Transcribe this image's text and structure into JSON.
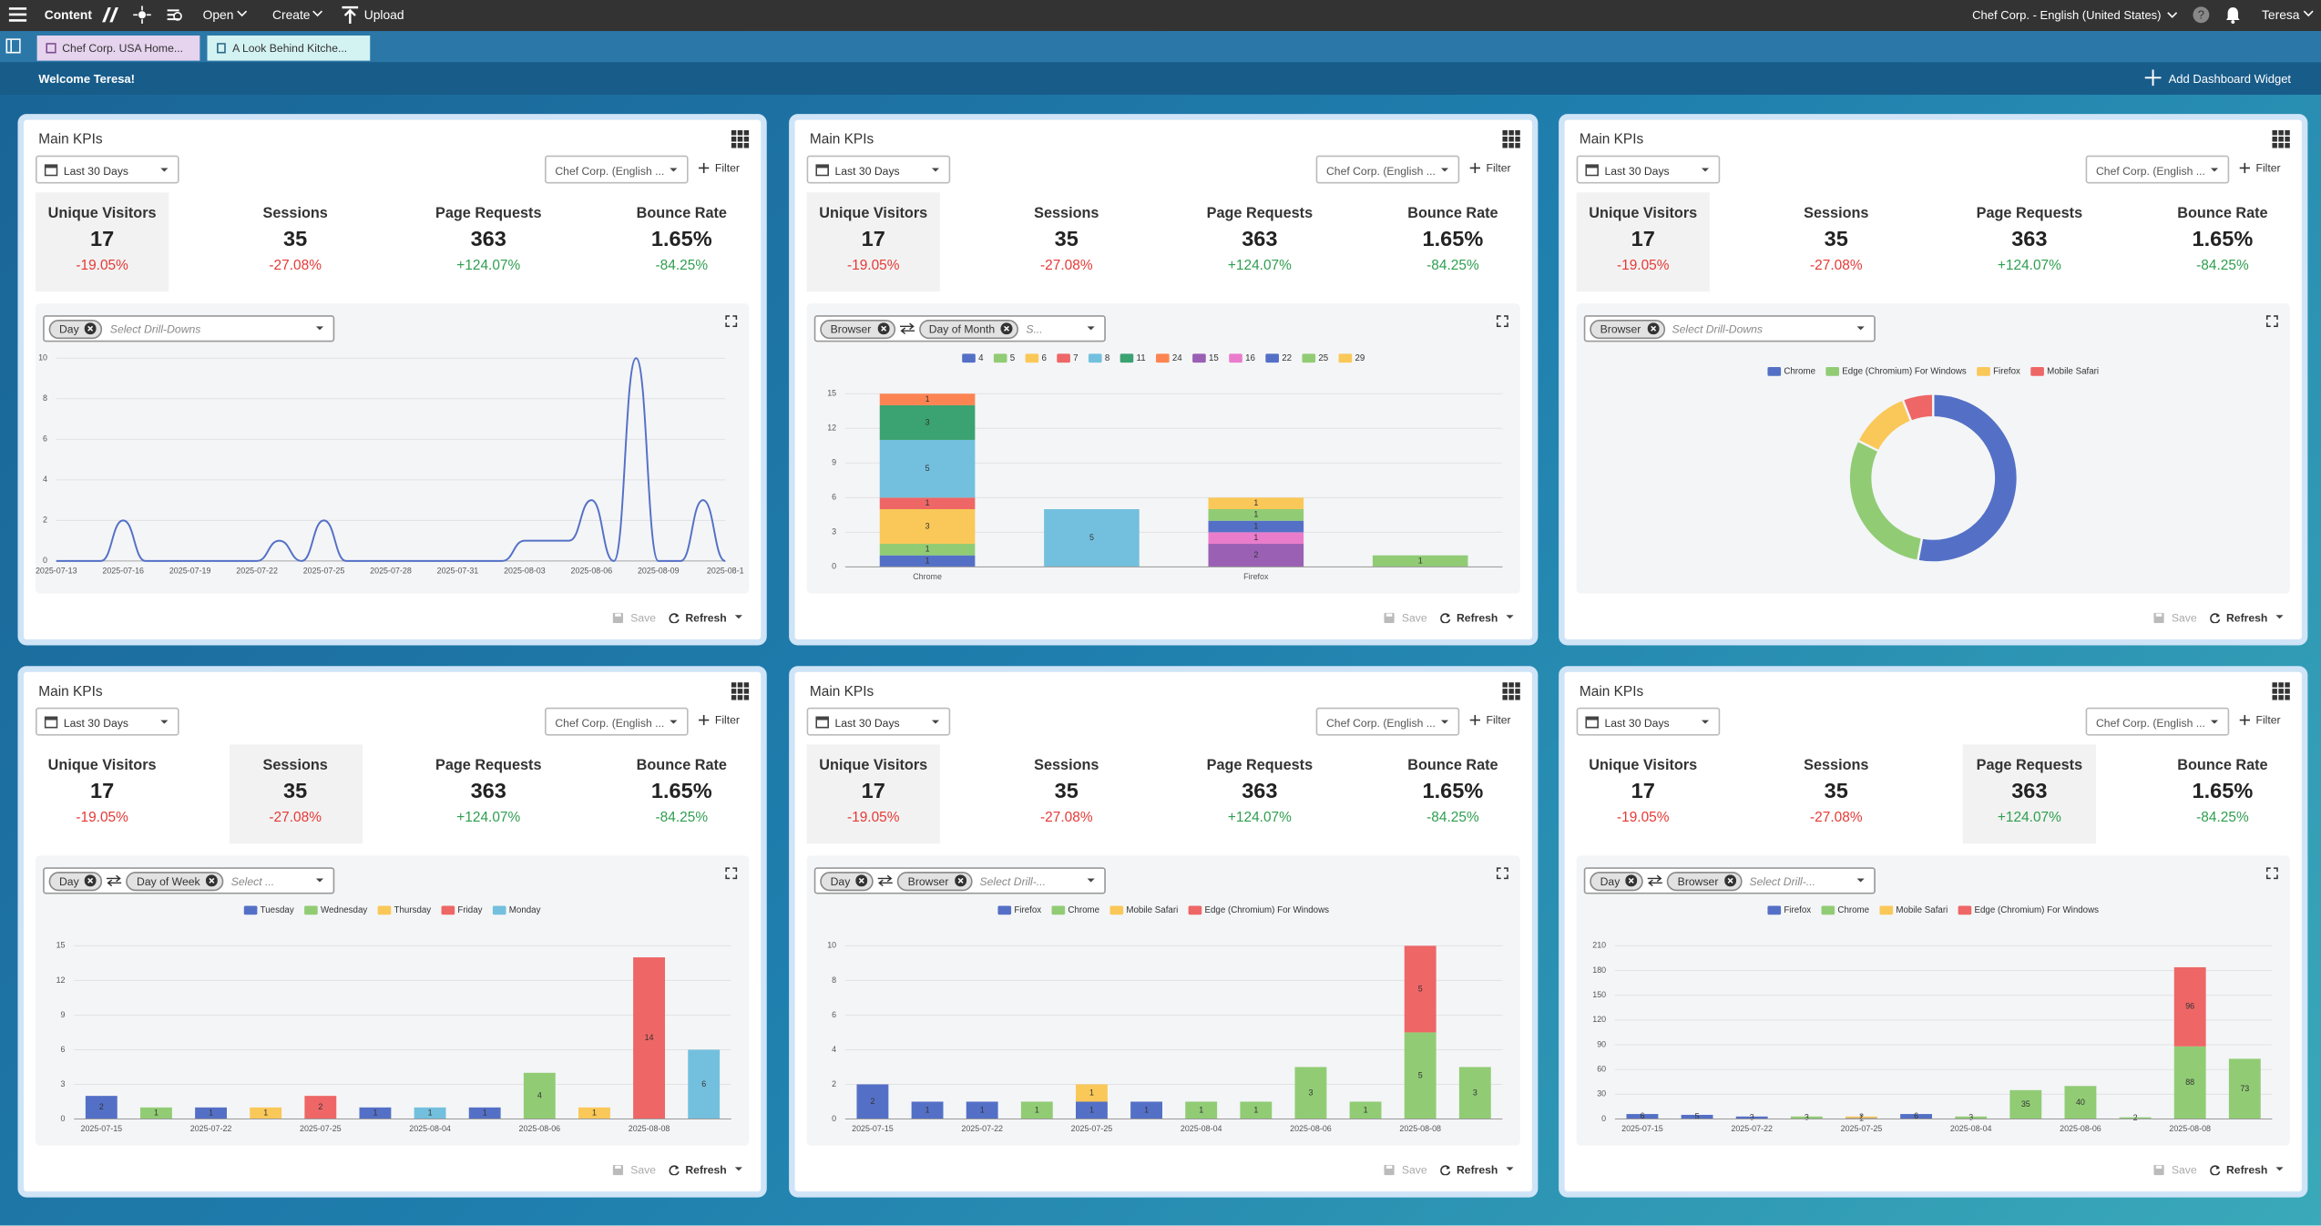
{
  "top_bar": {
    "app": "Content",
    "menus": [
      "Open",
      "Create"
    ],
    "upload": "Upload",
    "site": "Chef Corp. - English (United States)",
    "user": "Teresa"
  },
  "tabs": [
    "Chef Corp. USA Home...",
    "A Look Behind Kitche..."
  ],
  "welcome": "Welcome Teresa!",
  "add_widget": "Add Dashboard Widget",
  "widgets": [
    {
      "title": "Main KPIs",
      "date_range": "Last 30 Days",
      "site": "Chef Corp. (English ...",
      "filter": "Filter",
      "kpis": [
        {
          "label": "Unique Visitors",
          "value": "17",
          "change": "-19.05%",
          "change_color": "#e53935"
        },
        {
          "label": "Sessions",
          "value": "35",
          "change": "-27.08%",
          "change_color": "#e53935"
        },
        {
          "label": "Page Requests",
          "value": "363",
          "change": "+124.07%",
          "change_color": "#2e9e4f"
        },
        {
          "label": "Bounce Rate",
          "value": "1.65%",
          "change": "-84.25%",
          "change_color": "#2e9e4f"
        }
      ],
      "selected_kpi": 0,
      "drilldowns": [
        "Day"
      ],
      "drilldown_placeholder": "Select Drill-Downs",
      "chart": {
        "type": "line",
        "color": "#5470c6",
        "grid": true,
        "ylim": [
          0,
          10
        ],
        "yticks": [
          0,
          2,
          4,
          6,
          8,
          10
        ],
        "x": [
          "2025-07-13",
          null,
          null,
          "2025-07-16",
          null,
          null,
          "2025-07-19",
          null,
          null,
          "2025-07-22",
          null,
          null,
          "2025-07-25",
          null,
          null,
          "2025-07-28",
          null,
          null,
          "2025-07-31",
          null,
          null,
          "2025-08-03",
          null,
          null,
          "2025-08-06",
          null,
          null,
          "2025-08-09",
          null,
          null,
          "2025-08-1"
        ],
        "values": [
          0,
          0,
          0,
          2,
          0,
          0,
          0,
          0,
          0,
          0,
          1,
          0,
          2,
          0,
          0,
          0,
          0,
          0,
          0,
          0,
          0,
          1,
          1,
          1,
          3,
          0,
          10,
          0,
          0,
          3,
          0
        ]
      },
      "save": "Save",
      "refresh": "Refresh"
    },
    {
      "title": "Main KPIs",
      "date_range": "Last 30 Days",
      "site": "Chef Corp. (English ...",
      "filter": "Filter",
      "kpis": [
        {
          "label": "Unique Visitors",
          "value": "17",
          "change": "-19.05%",
          "change_color": "#e53935"
        },
        {
          "label": "Sessions",
          "value": "35",
          "change": "-27.08%",
          "change_color": "#e53935"
        },
        {
          "label": "Page Requests",
          "value": "363",
          "change": "+124.07%",
          "change_color": "#2e9e4f"
        },
        {
          "label": "Bounce Rate",
          "value": "1.65%",
          "change": "-84.25%",
          "change_color": "#2e9e4f"
        }
      ],
      "selected_kpi": 0,
      "drilldowns": [
        "Browser",
        "Day of Month"
      ],
      "drilldown_placeholder": "S...",
      "chart": {
        "type": "bar",
        "stacked": true,
        "grid": true,
        "ylim": [
          0,
          15
        ],
        "yticks": [
          0,
          3,
          6,
          9,
          12,
          15
        ],
        "categories": [
          "Chrome",
          null,
          "Firefox",
          null
        ],
        "series": [
          {
            "name": "4",
            "color": "#5470c6",
            "values": [
              1,
              null,
              null,
              null
            ]
          },
          {
            "name": "5",
            "color": "#91cc75",
            "values": [
              1,
              null,
              null,
              1
            ]
          },
          {
            "name": "6",
            "color": "#fac858",
            "values": [
              3,
              null,
              null,
              null
            ]
          },
          {
            "name": "7",
            "color": "#ee6666",
            "values": [
              1,
              null,
              null,
              null
            ]
          },
          {
            "name": "8",
            "color": "#73c0de",
            "values": [
              5,
              5,
              null,
              null
            ]
          },
          {
            "name": "11",
            "color": "#3ba272",
            "values": [
              3,
              null,
              null,
              null
            ]
          },
          {
            "name": "24",
            "color": "#fc8452",
            "values": [
              1,
              null,
              null,
              null
            ]
          },
          {
            "name": "15",
            "color": "#9a60b4",
            "values": [
              null,
              null,
              2,
              null
            ]
          },
          {
            "name": "16",
            "color": "#ea7ccc",
            "values": [
              null,
              null,
              1,
              null
            ]
          },
          {
            "name": "22",
            "color": "#5470c6",
            "values": [
              null,
              null,
              1,
              null
            ]
          },
          {
            "name": "25",
            "color": "#91cc75",
            "values": [
              null,
              null,
              1,
              null
            ]
          },
          {
            "name": "29",
            "color": "#fac858",
            "values": [
              null,
              null,
              1,
              null
            ]
          }
        ]
      },
      "save": "Save",
      "refresh": "Refresh"
    },
    {
      "title": "Main KPIs",
      "date_range": "Last 30 Days",
      "site": "Chef Corp. (English ...",
      "filter": "Filter",
      "kpis": [
        {
          "label": "Unique Visitors",
          "value": "17",
          "change": "-19.05%",
          "change_color": "#e53935"
        },
        {
          "label": "Sessions",
          "value": "35",
          "change": "-27.08%",
          "change_color": "#e53935"
        },
        {
          "label": "Page Requests",
          "value": "363",
          "change": "+124.07%",
          "change_color": "#2e9e4f"
        },
        {
          "label": "Bounce Rate",
          "value": "1.65%",
          "change": "-84.25%",
          "change_color": "#2e9e4f"
        }
      ],
      "selected_kpi": 0,
      "drilldowns": [
        "Browser"
      ],
      "drilldown_placeholder": "Select Drill-Downs",
      "chart": {
        "type": "pie",
        "donut": true,
        "categories": [
          "Chrome",
          "Edge (Chromium) For Windows",
          "Firefox",
          "Mobile Safari"
        ],
        "values": [
          9,
          5,
          2,
          1
        ],
        "colors": [
          "#5470c6",
          "#91cc75",
          "#fac858",
          "#ee6666"
        ]
      },
      "save": "Save",
      "refresh": "Refresh"
    },
    {
      "title": "Main KPIs",
      "date_range": "Last 30 Days",
      "site": "Chef Corp. (English ...",
      "filter": "Filter",
      "kpis": [
        {
          "label": "Unique Visitors",
          "value": "17",
          "change": "-19.05%",
          "change_color": "#e53935"
        },
        {
          "label": "Sessions",
          "value": "35",
          "change": "-27.08%",
          "change_color": "#e53935"
        },
        {
          "label": "Page Requests",
          "value": "363",
          "change": "+124.07%",
          "change_color": "#2e9e4f"
        },
        {
          "label": "Bounce Rate",
          "value": "1.65%",
          "change": "-84.25%",
          "change_color": "#2e9e4f"
        }
      ],
      "selected_kpi": 1,
      "drilldowns": [
        "Day",
        "Day of Week"
      ],
      "drilldown_placeholder": "Select ...",
      "chart": {
        "type": "bar",
        "stacked": true,
        "grid": true,
        "ylim": [
          0,
          15
        ],
        "yticks": [
          0,
          3,
          6,
          9,
          12,
          15
        ],
        "categories": [
          "2025-07-15",
          null,
          "2025-07-22",
          null,
          "2025-07-25",
          null,
          "2025-08-04",
          null,
          "2025-08-06",
          null,
          "2025-08-08",
          null
        ],
        "series": [
          {
            "name": "Tuesday",
            "color": "#5470c6",
            "values": [
              2,
              null,
              1,
              null,
              null,
              1,
              null,
              1,
              null,
              null,
              null,
              null
            ]
          },
          {
            "name": "Wednesday",
            "color": "#91cc75",
            "values": [
              null,
              1,
              null,
              null,
              null,
              null,
              null,
              null,
              4,
              null,
              null,
              null
            ]
          },
          {
            "name": "Thursday",
            "color": "#fac858",
            "values": [
              null,
              null,
              null,
              1,
              null,
              null,
              null,
              null,
              null,
              1,
              null,
              null
            ]
          },
          {
            "name": "Friday",
            "color": "#ee6666",
            "values": [
              null,
              null,
              null,
              null,
              2,
              null,
              null,
              null,
              null,
              null,
              14,
              null
            ]
          },
          {
            "name": "Monday",
            "color": "#73c0de",
            "values": [
              null,
              null,
              null,
              null,
              null,
              null,
              1,
              null,
              null,
              null,
              null,
              6
            ]
          }
        ]
      },
      "save": "Save",
      "refresh": "Refresh"
    },
    {
      "title": "Main KPIs",
      "date_range": "Last 30 Days",
      "site": "Chef Corp. (English ...",
      "filter": "Filter",
      "kpis": [
        {
          "label": "Unique Visitors",
          "value": "17",
          "change": "-19.05%",
          "change_color": "#e53935"
        },
        {
          "label": "Sessions",
          "value": "35",
          "change": "-27.08%",
          "change_color": "#e53935"
        },
        {
          "label": "Page Requests",
          "value": "363",
          "change": "+124.07%",
          "change_color": "#2e9e4f"
        },
        {
          "label": "Bounce Rate",
          "value": "1.65%",
          "change": "-84.25%",
          "change_color": "#2e9e4f"
        }
      ],
      "selected_kpi": 0,
      "drilldowns": [
        "Day",
        "Browser"
      ],
      "drilldown_placeholder": "Select Drill-...",
      "chart": {
        "type": "bar",
        "stacked": true,
        "grid": true,
        "ylim": [
          0,
          10
        ],
        "yticks": [
          0,
          2,
          4,
          6,
          8,
          10
        ],
        "categories": [
          "2025-07-15",
          null,
          "2025-07-22",
          null,
          "2025-07-25",
          null,
          "2025-08-04",
          null,
          "2025-08-06",
          null,
          "2025-08-08",
          null
        ],
        "series": [
          {
            "name": "Firefox",
            "color": "#5470c6",
            "values": [
              2,
              1,
              1,
              null,
              1,
              1,
              null,
              null,
              null,
              null,
              null,
              null
            ]
          },
          {
            "name": "Chrome",
            "color": "#91cc75",
            "values": [
              null,
              null,
              null,
              1,
              null,
              null,
              1,
              1,
              3,
              1,
              5,
              3
            ]
          },
          {
            "name": "Mobile Safari",
            "color": "#fac858",
            "values": [
              null,
              null,
              null,
              null,
              1,
              null,
              null,
              null,
              null,
              null,
              null,
              null
            ]
          },
          {
            "name": "Edge (Chromium) For Windows",
            "color": "#ee6666",
            "values": [
              null,
              null,
              null,
              null,
              null,
              null,
              null,
              null,
              null,
              null,
              5,
              null
            ]
          }
        ]
      },
      "save": "Save",
      "refresh": "Refresh"
    },
    {
      "title": "Main KPIs",
      "date_range": "Last 30 Days",
      "site": "Chef Corp. (English ...",
      "filter": "Filter",
      "kpis": [
        {
          "label": "Unique Visitors",
          "value": "17",
          "change": "-19.05%",
          "change_color": "#e53935"
        },
        {
          "label": "Sessions",
          "value": "35",
          "change": "-27.08%",
          "change_color": "#e53935"
        },
        {
          "label": "Page Requests",
          "value": "363",
          "change": "+124.07%",
          "change_color": "#2e9e4f"
        },
        {
          "label": "Bounce Rate",
          "value": "1.65%",
          "change": "-84.25%",
          "change_color": "#2e9e4f"
        }
      ],
      "selected_kpi": 2,
      "drilldowns": [
        "Day",
        "Browser"
      ],
      "drilldown_placeholder": "Select Drill-...",
      "chart": {
        "type": "bar",
        "stacked": true,
        "grid": true,
        "ylim": [
          0,
          210
        ],
        "yticks": [
          0,
          30,
          60,
          90,
          120,
          150,
          180,
          210
        ],
        "categories": [
          "2025-07-15",
          null,
          "2025-07-22",
          null,
          "2025-07-25",
          null,
          "2025-08-04",
          null,
          "2025-08-06",
          null,
          "2025-08-08",
          null
        ],
        "series": [
          {
            "name": "Firefox",
            "color": "#5470c6",
            "values": [
              6,
              5,
              3,
              null,
              1,
              6,
              null,
              null,
              null,
              null,
              null,
              null
            ]
          },
          {
            "name": "Chrome",
            "color": "#91cc75",
            "values": [
              null,
              null,
              null,
              3,
              null,
              null,
              3,
              35,
              40,
              2,
              88,
              73
            ]
          },
          {
            "name": "Mobile Safari",
            "color": "#fac858",
            "values": [
              null,
              null,
              null,
              null,
              2,
              null,
              null,
              null,
              null,
              null,
              null,
              null
            ]
          },
          {
            "name": "Edge (Chromium) For Windows",
            "color": "#ee6666",
            "values": [
              null,
              null,
              null,
              null,
              null,
              null,
              null,
              null,
              null,
              null,
              96,
              null
            ]
          }
        ]
      },
      "save": "Save",
      "refresh": "Refresh"
    }
  ]
}
